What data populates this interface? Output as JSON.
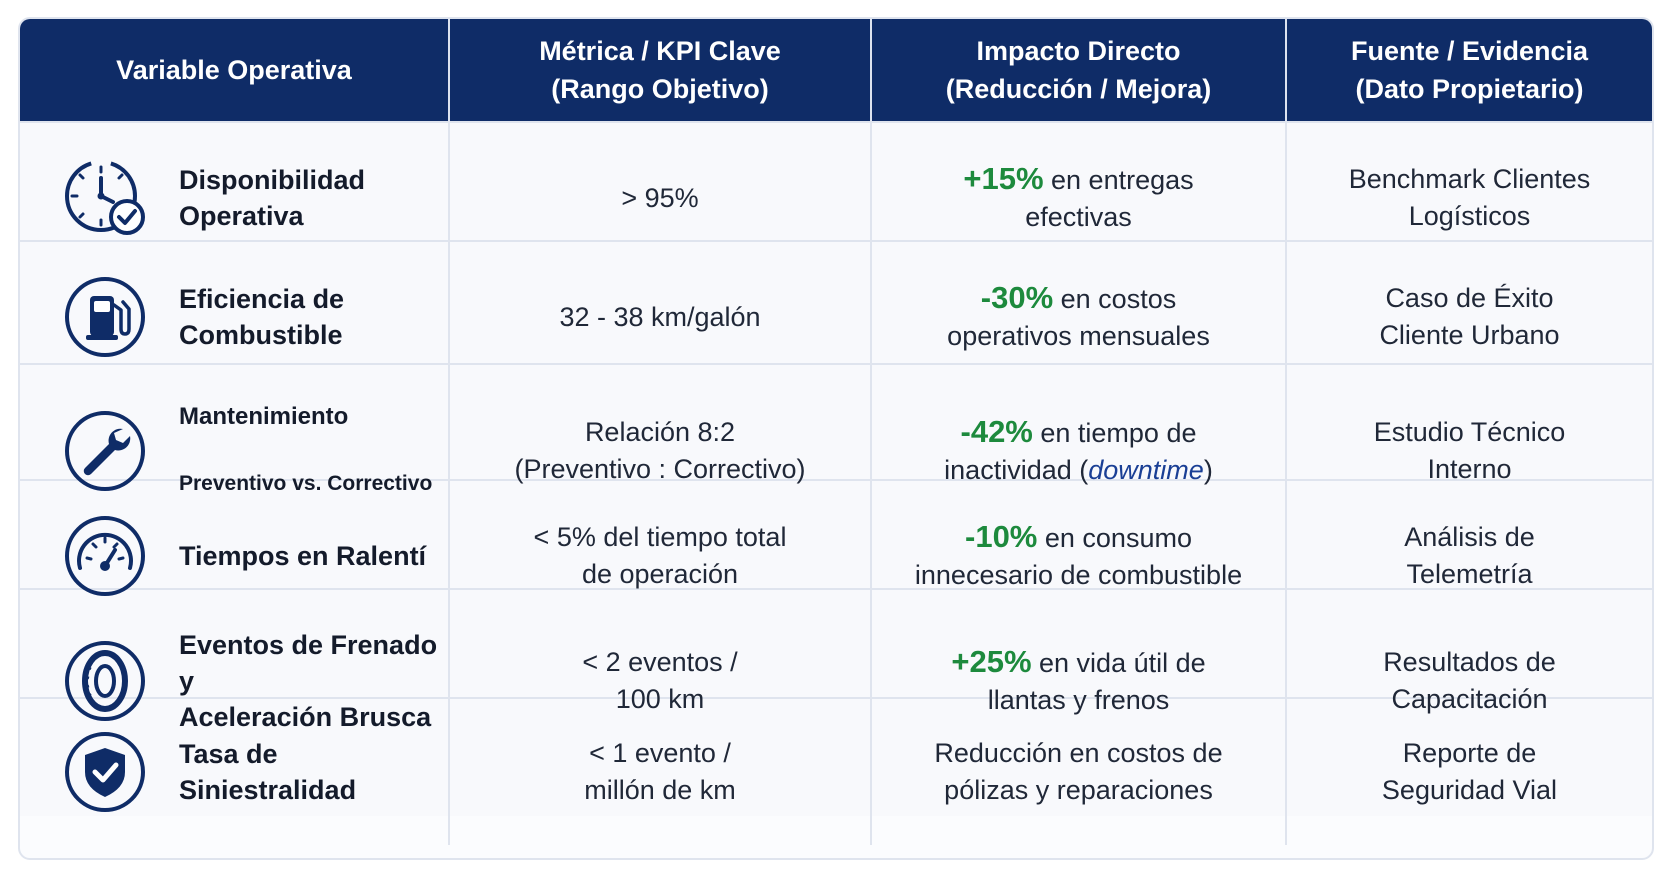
{
  "page": {
    "title": ""
  },
  "table": {
    "headers": {
      "variable": "Variable Operativa",
      "metric": "Métrica / KPI Clave\n(Rango Objetivo)",
      "impact": "Impacto Directo\n(Reducción / Mejora)",
      "source": "Fuente / Evidencia\n(Dato Propietario)"
    },
    "rows": [
      {
        "icon": "clock-check-icon",
        "variable": "Disponibilidad\nOperativa",
        "variable_sub": "",
        "metric": "> 95%",
        "impact_value": "+15%",
        "impact_text": " en entregas",
        "impact_line2": "efectivas",
        "source": "Benchmark Clientes\nLogísticos"
      },
      {
        "icon": "fuel-pump-icon",
        "variable": "Eficiencia de\nCombustible",
        "variable_sub": "",
        "metric": "32 - 38 km/galón",
        "impact_value": "-30%",
        "impact_text": " en costos",
        "impact_line2": "operativos mensuales",
        "source": "Caso de Éxito\nCliente Urbano"
      },
      {
        "icon": "wrench-icon",
        "variable": "Mantenimiento",
        "variable_sub": "Preventivo vs. Correctivo",
        "metric": "Relación 8:2\n(Preventivo : Correctivo)",
        "impact_value": "-42%",
        "impact_text": " en tiempo de",
        "impact_line2_pre": "inactividad (",
        "impact_line2_em": "downtime",
        "impact_line2_post": ")",
        "source": "Estudio Técnico\nInterno"
      },
      {
        "icon": "speedometer-icon",
        "variable": "Tiempos en Ralentí",
        "variable_sub": "",
        "metric": "< 5% del tiempo total\nde operación",
        "impact_value": "-10%",
        "impact_text": " en consumo",
        "impact_line2": "innecesario de combustible",
        "source": "Análisis de\nTelemetría"
      },
      {
        "icon": "tire-icon",
        "variable": "Eventos de Frenado y\nAceleración Brusca",
        "variable_sub": "",
        "metric": "< 2 eventos /\n100 km",
        "impact_value": "+25%",
        "impact_text": " en vida útil de",
        "impact_line2": "llantas y frenos",
        "source": "Resultados de\nCapacitación"
      },
      {
        "icon": "shield-check-icon",
        "variable": "Tasa de Siniestralidad",
        "variable_sub": "",
        "metric": "< 1 evento /\nmillón de km",
        "impact_plain": "Reducción en costos de\npólizas y reparaciones",
        "source": "Reporte de\nSeguridad Vial"
      }
    ]
  },
  "colors": {
    "header_bg": "#0f2c67",
    "accent_green": "#1d8a3d",
    "icon_navy": "#0f2c67",
    "emphasis_blue": "#1a3f95"
  }
}
